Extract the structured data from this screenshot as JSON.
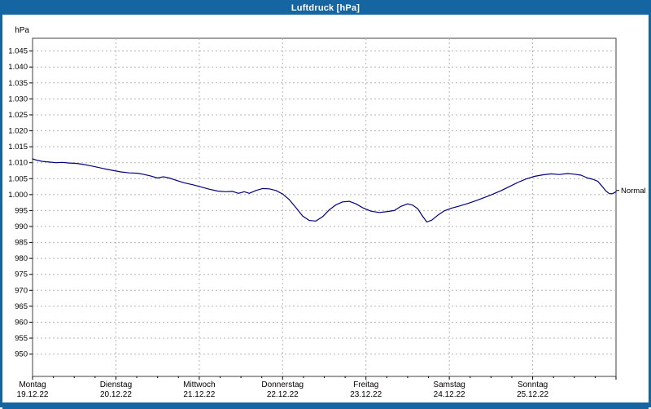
{
  "window": {
    "title": "Luftdruck [hPa]"
  },
  "colors": {
    "accent": "#1565a3",
    "line": "#000080",
    "grid": "#b4b4b4",
    "plot_border": "#404040",
    "tick": "#000000",
    "background": "#ffffff",
    "text": "#000000"
  },
  "chart_data": {
    "type": "line",
    "title": "Luftdruck [hPa]",
    "xlabel": "",
    "ylabel": "hPa",
    "unit": "hPa",
    "grid": "dashed",
    "legend_position": "none",
    "ylim": [
      943,
      1049
    ],
    "y_tick_values": [
      1045,
      1040,
      1035,
      1030,
      1025,
      1020,
      1015,
      1010,
      1005,
      1000,
      995,
      990,
      985,
      980,
      975,
      970,
      965,
      960,
      955,
      950
    ],
    "y_tick_labels": [
      "1.045",
      "1.040",
      "1.035",
      "1.030",
      "1.025",
      "1.020",
      "1.015",
      "1.010",
      "1.005",
      "1.000",
      "995",
      "990",
      "985",
      "980",
      "975",
      "970",
      "965",
      "960",
      "955",
      "950"
    ],
    "x_range_days": [
      0,
      7
    ],
    "x_days": [
      {
        "name": "Montag",
        "date": "19.12.22"
      },
      {
        "name": "Dienstag",
        "date": "20.12.22"
      },
      {
        "name": "Mittwoch",
        "date": "21.12.22"
      },
      {
        "name": "Donnerstag",
        "date": "22.12.22"
      },
      {
        "name": "Freitag",
        "date": "23.12.22"
      },
      {
        "name": "Samstag",
        "date": "24.12.22"
      },
      {
        "name": "Sonntag",
        "date": "25.12.22"
      }
    ],
    "normal": {
      "label": "Normal",
      "value": 1001.3
    },
    "series": [
      {
        "name": "Luftdruck",
        "unit": "hPa",
        "points": [
          [
            0.0,
            1011.2
          ],
          [
            0.06,
            1010.7
          ],
          [
            0.12,
            1010.4
          ],
          [
            0.2,
            1010.2
          ],
          [
            0.28,
            1010.0
          ],
          [
            0.36,
            1010.1
          ],
          [
            0.44,
            1009.9
          ],
          [
            0.52,
            1009.8
          ],
          [
            0.6,
            1009.5
          ],
          [
            0.68,
            1009.1
          ],
          [
            0.76,
            1008.7
          ],
          [
            0.86,
            1008.1
          ],
          [
            0.96,
            1007.6
          ],
          [
            1.06,
            1007.1
          ],
          [
            1.16,
            1006.8
          ],
          [
            1.26,
            1006.7
          ],
          [
            1.34,
            1006.3
          ],
          [
            1.42,
            1005.8
          ],
          [
            1.5,
            1005.2
          ],
          [
            1.57,
            1005.6
          ],
          [
            1.64,
            1005.2
          ],
          [
            1.72,
            1004.5
          ],
          [
            1.82,
            1003.7
          ],
          [
            1.92,
            1003.1
          ],
          [
            2.02,
            1002.4
          ],
          [
            2.12,
            1001.7
          ],
          [
            2.22,
            1001.1
          ],
          [
            2.32,
            1000.9
          ],
          [
            2.4,
            1001.0
          ],
          [
            2.47,
            1000.4
          ],
          [
            2.54,
            1000.9
          ],
          [
            2.6,
            1000.4
          ],
          [
            2.68,
            1001.3
          ],
          [
            2.76,
            1001.9
          ],
          [
            2.84,
            1001.8
          ],
          [
            2.92,
            1001.3
          ],
          [
            3.0,
            1000.2
          ],
          [
            3.08,
            998.4
          ],
          [
            3.16,
            995.9
          ],
          [
            3.24,
            993.3
          ],
          [
            3.32,
            991.9
          ],
          [
            3.4,
            991.7
          ],
          [
            3.48,
            993.1
          ],
          [
            3.56,
            995.2
          ],
          [
            3.64,
            996.8
          ],
          [
            3.72,
            997.7
          ],
          [
            3.8,
            997.9
          ],
          [
            3.88,
            997.1
          ],
          [
            3.96,
            995.9
          ],
          [
            4.06,
            994.8
          ],
          [
            4.16,
            994.4
          ],
          [
            4.26,
            994.7
          ],
          [
            4.34,
            995.0
          ],
          [
            4.42,
            996.3
          ],
          [
            4.5,
            997.1
          ],
          [
            4.56,
            996.7
          ],
          [
            4.62,
            995.6
          ],
          [
            4.68,
            993.2
          ],
          [
            4.73,
            991.4
          ],
          [
            4.79,
            992.0
          ],
          [
            4.86,
            993.5
          ],
          [
            4.94,
            994.9
          ],
          [
            5.02,
            995.7
          ],
          [
            5.12,
            996.4
          ],
          [
            5.22,
            997.2
          ],
          [
            5.32,
            998.1
          ],
          [
            5.42,
            999.1
          ],
          [
            5.52,
            1000.1
          ],
          [
            5.62,
            1001.2
          ],
          [
            5.72,
            1002.5
          ],
          [
            5.82,
            1003.8
          ],
          [
            5.92,
            1004.9
          ],
          [
            6.02,
            1005.7
          ],
          [
            6.12,
            1006.2
          ],
          [
            6.22,
            1006.5
          ],
          [
            6.32,
            1006.3
          ],
          [
            6.42,
            1006.6
          ],
          [
            6.5,
            1006.4
          ],
          [
            6.58,
            1006.1
          ],
          [
            6.66,
            1005.2
          ],
          [
            6.72,
            1004.8
          ],
          [
            6.78,
            1004.2
          ],
          [
            6.83,
            1002.7
          ],
          [
            6.88,
            1001.1
          ],
          [
            6.92,
            1000.3
          ],
          [
            6.96,
            1000.3
          ],
          [
            7.0,
            1000.9
          ]
        ]
      }
    ]
  }
}
